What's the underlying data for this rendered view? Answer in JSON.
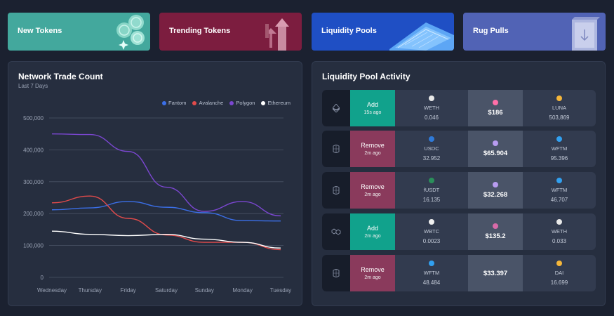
{
  "colors": {
    "fantom": "#3b6fe8",
    "avalanche": "#e24b4b",
    "polygon": "#7b47d1",
    "ethereum": "#ffffff",
    "add": "#11a28c",
    "remove": "#8a3a5c"
  },
  "cards": [
    {
      "label": "New Tokens",
      "icon": "coins-icon",
      "bg": "#43a89d"
    },
    {
      "label": "Trending Tokens",
      "icon": "trend-arrows-icon",
      "bg": "#7c1d3f"
    },
    {
      "label": "Liquidity Pools",
      "icon": "pool-icon",
      "bg": "#1f4fc4"
    },
    {
      "label": "Rug Pulls",
      "icon": "door-icon",
      "bg": "#5163b5"
    }
  ],
  "trade_panel": {
    "title": "Network Trade Count",
    "subtitle": "Last 7 Days"
  },
  "chart_data": {
    "type": "line",
    "categories": [
      "Wednesday",
      "Thursday",
      "Friday",
      "Saturday",
      "Sunday",
      "Monday",
      "Tuesday"
    ],
    "ylim": [
      0,
      500000
    ],
    "yticks": [
      "0",
      "100,000",
      "200,000",
      "300,000",
      "400,000",
      "500,000"
    ],
    "legend_position": "top-right",
    "grid": true,
    "series": [
      {
        "name": "Fantom",
        "color": "#3b6fe8",
        "values": [
          212000,
          218000,
          238000,
          220000,
          203000,
          178000,
          177000
        ]
      },
      {
        "name": "Avalanche",
        "color": "#e24b4b",
        "values": [
          234000,
          255000,
          185000,
          133000,
          110000,
          110000,
          87000
        ]
      },
      {
        "name": "Polygon",
        "color": "#7b47d1",
        "values": [
          450000,
          448000,
          395000,
          283000,
          207000,
          238000,
          193000
        ]
      },
      {
        "name": "Ethereum",
        "color": "#ffffff",
        "values": [
          145000,
          135000,
          131000,
          135000,
          120000,
          110000,
          92000
        ]
      }
    ]
  },
  "pool_panel": {
    "title": "Liquidity Pool Activity",
    "rows": [
      {
        "chain_icon": "ethereum-icon",
        "action": "Add",
        "time": "15s ago",
        "token_a": {
          "symbol": "WETH",
          "amount": "0.046",
          "icon": "weth-icon",
          "color": "#e8e8e8"
        },
        "price": "$186",
        "price_icon": "uniswap-icon",
        "price_icon_color": "#ff6fa8",
        "token_b": {
          "symbol": "LUNA",
          "amount": "503,869",
          "icon": "luna-icon",
          "color": "#f5b63a"
        }
      },
      {
        "chain_icon": "fantom-icon",
        "action": "Remove",
        "time": "2m ago",
        "token_a": {
          "symbol": "USDC",
          "amount": "32.952",
          "icon": "usdc-icon",
          "color": "#2f7ad8"
        },
        "price": "$65.904",
        "price_icon": "spooky-icon",
        "price_icon_color": "#b89cf0",
        "token_b": {
          "symbol": "WFTM",
          "amount": "95.396",
          "icon": "wftm-icon",
          "color": "#31a0f0"
        }
      },
      {
        "chain_icon": "fantom-icon",
        "action": "Remove",
        "time": "2m ago",
        "token_a": {
          "symbol": "fUSDT",
          "amount": "16.135",
          "icon": "fusdt-icon",
          "color": "#2a8f5a"
        },
        "price": "$32.268",
        "price_icon": "spooky-icon",
        "price_icon_color": "#b89cf0",
        "token_b": {
          "symbol": "WFTM",
          "amount": "46.707",
          "icon": "wftm-icon",
          "color": "#31a0f0"
        }
      },
      {
        "chain_icon": "polygon-icon",
        "action": "Add",
        "time": "2m ago",
        "token_a": {
          "symbol": "WBTC",
          "amount": "0.0023",
          "icon": "wbtc-icon",
          "color": "#f0f0f0"
        },
        "price": "$135.2",
        "price_icon": "sushi-icon",
        "price_icon_color": "#d86aa8",
        "token_b": {
          "symbol": "WETH",
          "amount": "0.033",
          "icon": "weth-icon",
          "color": "#e8e8e8"
        }
      },
      {
        "chain_icon": "fantom-icon",
        "action": "Remove",
        "time": "2m ago",
        "token_a": {
          "symbol": "WFTM",
          "amount": "48.484",
          "icon": "wftm-icon",
          "color": "#31a0f0"
        },
        "price": "$33.397",
        "price_icon": "",
        "price_icon_color": "",
        "token_b": {
          "symbol": "DAI",
          "amount": "16.699",
          "icon": "dai-icon",
          "color": "#f5b63a"
        }
      }
    ]
  }
}
